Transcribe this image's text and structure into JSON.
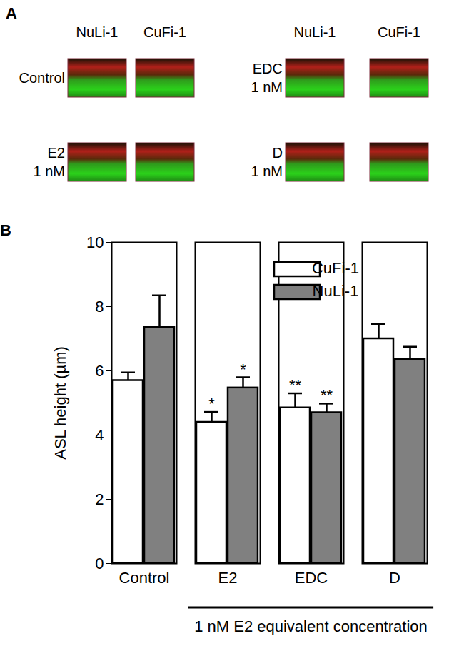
{
  "panel_labels": [
    "A",
    "B"
  ],
  "panel_a": {
    "groups": [
      {
        "columns": [
          "NuLi-1",
          "CuFi-1"
        ],
        "rows": [
          [
            "Control"
          ],
          [
            "E2",
            "1 nM"
          ]
        ]
      },
      {
        "columns": [
          "NuLi-1",
          "CuFi-1"
        ],
        "rows": [
          [
            "EDC",
            "1 nM"
          ],
          [
            "D",
            "1 nM"
          ]
        ]
      }
    ]
  },
  "chart_data": {
    "type": "bar",
    "categories": [
      "Control",
      "E2",
      "EDC",
      "D"
    ],
    "series": [
      {
        "name": "CuFi-1",
        "color": "#ffffff",
        "values": [
          5.7,
          4.4,
          4.85,
          7.0
        ],
        "errors": [
          0.25,
          0.32,
          0.45,
          0.45
        ],
        "significance": [
          null,
          "*",
          "**",
          null
        ]
      },
      {
        "name": "NuLi-1",
        "color": "#808080",
        "values": [
          7.35,
          5.47,
          4.7,
          6.35
        ],
        "errors": [
          1.0,
          0.33,
          0.28,
          0.4
        ],
        "significance": [
          null,
          "*",
          "**",
          null
        ]
      }
    ],
    "ylabel": "ASL height (µm)",
    "ylim": [
      0,
      10
    ],
    "yticks": [
      0,
      2,
      4,
      6,
      8,
      10
    ],
    "group_label": {
      "text": "1 nM E2 equivalent concentration",
      "categories": [
        "E2",
        "EDC",
        "D"
      ]
    },
    "legend": "upper right",
    "grid": false
  }
}
